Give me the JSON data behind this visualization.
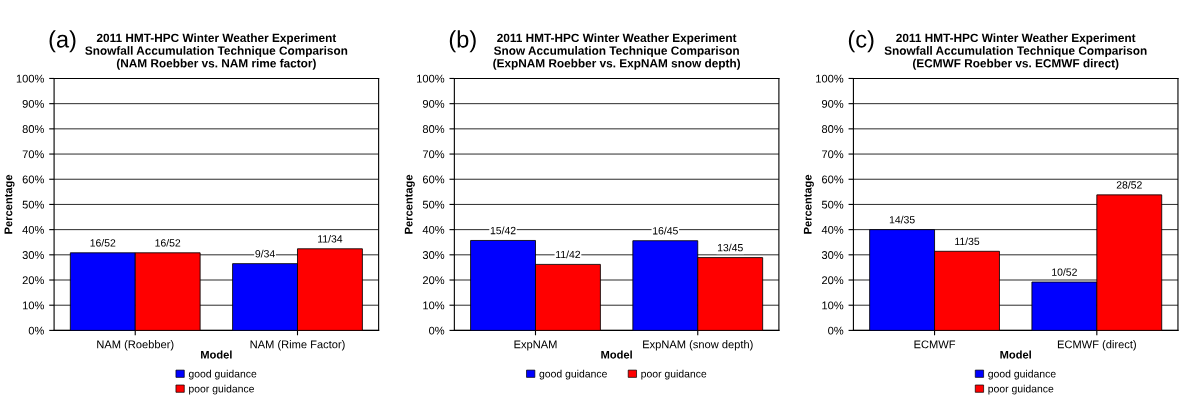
{
  "chart_data": [
    {
      "type": "bar",
      "title": "2011 HMT-HPC Winter Weather Experiment",
      "subtitle": "Snowfall Accumulation Technique Comparison\n(NAM Roebber vs. NAM rime factor)",
      "annotations": [
        "(a)"
      ],
      "xlabel": "Model",
      "ylabel": "Percentage",
      "categories": [
        "NAM (Roebber)",
        "NAM (Rime Factor)"
      ],
      "series": [
        {
          "name": "good guidance",
          "color": "#0000ff",
          "values": [
            30.8,
            26.5
          ],
          "value_labels": [
            "16/52",
            "9/34"
          ]
        },
        {
          "name": "poor guidance",
          "color": "#ff0000",
          "values": [
            30.8,
            32.4
          ],
          "value_labels": [
            "16/52",
            "11/34"
          ]
        }
      ],
      "ylim": [
        0,
        100
      ],
      "yticks": [
        {
          "value": 0,
          "label": "0%"
        },
        {
          "value": 10,
          "label": "10%"
        },
        {
          "value": 20,
          "label": "20%"
        },
        {
          "value": 30,
          "label": "30%"
        },
        {
          "value": 40,
          "label": "40%"
        },
        {
          "value": 50,
          "label": "50%"
        },
        {
          "value": 60,
          "label": "60%"
        },
        {
          "value": 70,
          "label": "70%"
        },
        {
          "value": 80,
          "label": "80%"
        },
        {
          "value": 90,
          "label": "90%"
        },
        {
          "value": 100,
          "label": "100%"
        }
      ],
      "grid": "y",
      "legend": "bottom"
    },
    {
      "type": "bar",
      "title": "2011 HMT-HPC Winter Weather Experiment",
      "subtitle": "Snow Accumulation Technique Comparison\n(ExpNAM Roebber vs. ExpNAM snow depth)",
      "annotations": [
        "(b)"
      ],
      "xlabel": "Model",
      "ylabel": "Percentage",
      "categories": [
        "ExpNAM",
        "ExpNAM (snow depth)"
      ],
      "series": [
        {
          "name": "good guidance",
          "color": "#0000ff",
          "values": [
            35.7,
            35.6
          ],
          "value_labels": [
            "15/42",
            "16/45"
          ]
        },
        {
          "name": "poor guidance",
          "color": "#ff0000",
          "values": [
            26.2,
            28.9
          ],
          "value_labels": [
            "11/42",
            "13/45"
          ]
        }
      ],
      "ylim": [
        0,
        100
      ],
      "yticks": [
        {
          "value": 0,
          "label": "0%"
        },
        {
          "value": 10,
          "label": "10%"
        },
        {
          "value": 20,
          "label": "20%"
        },
        {
          "value": 30,
          "label": "30%"
        },
        {
          "value": 40,
          "label": "40%"
        },
        {
          "value": 50,
          "label": "50%"
        },
        {
          "value": 60,
          "label": "60%"
        },
        {
          "value": 70,
          "label": "70%"
        },
        {
          "value": 80,
          "label": "80%"
        },
        {
          "value": 90,
          "label": "90%"
        },
        {
          "value": 100,
          "label": "100%"
        }
      ],
      "grid": "y",
      "legend": "bottom"
    },
    {
      "type": "bar",
      "title": "2011 HMT-HPC Winter Weather Experiment",
      "subtitle": "Snowfall Accumulation Technique Comparison\n(ECMWF Roebber vs. ECMWF direct)",
      "annotations": [
        "(c)"
      ],
      "xlabel": "Model",
      "ylabel": "Percentage",
      "categories": [
        "ECMWF",
        "ECMWF (direct)"
      ],
      "series": [
        {
          "name": "good guidance",
          "color": "#0000ff",
          "values": [
            40.0,
            19.2
          ],
          "value_labels": [
            "14/35",
            "10/52"
          ]
        },
        {
          "name": "poor guidance",
          "color": "#ff0000",
          "values": [
            31.4,
            53.8
          ],
          "value_labels": [
            "11/35",
            "28/52"
          ]
        }
      ],
      "ylim": [
        0,
        100
      ],
      "yticks": [
        {
          "value": 0,
          "label": "0%"
        },
        {
          "value": 10,
          "label": "10%"
        },
        {
          "value": 20,
          "label": "20%"
        },
        {
          "value": 30,
          "label": "30%"
        },
        {
          "value": 40,
          "label": "40%"
        },
        {
          "value": 50,
          "label": "50%"
        },
        {
          "value": 60,
          "label": "60%"
        },
        {
          "value": 70,
          "label": "70%"
        },
        {
          "value": 80,
          "label": "80%"
        },
        {
          "value": 90,
          "label": "90%"
        },
        {
          "value": 100,
          "label": "100%"
        }
      ],
      "grid": "y",
      "legend": "bottom"
    }
  ]
}
